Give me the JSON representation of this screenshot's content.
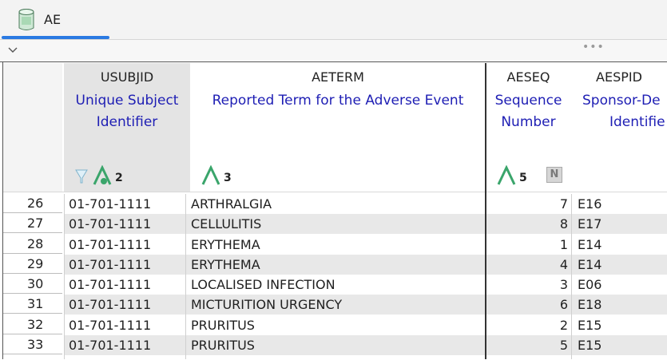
{
  "tab": {
    "label": "AE"
  },
  "columns": [
    {
      "name": "USUBJID",
      "label_line1": "Unique Subject",
      "label_line2": "Identifier",
      "sort_badge": "2"
    },
    {
      "name": "AETERM",
      "label_line1": "Reported Term for the Adverse Event",
      "label_line2": "",
      "sort_badge": "3"
    },
    {
      "name": "AESEQ",
      "label_line1": "Sequence",
      "label_line2": "Number",
      "sort_badge": "5"
    },
    {
      "name": "AESPID",
      "label_line1": "Sponsor-De",
      "label_line2": "Identifie",
      "sort_badge": ""
    }
  ],
  "icons": {
    "usubjid": [
      "filter-icon",
      "sort-ascending-icon"
    ],
    "aeterm": [
      "sort-ascending-icon"
    ],
    "aeseq": [
      "sort-ascending-icon",
      "numeric-type-icon"
    ],
    "numeric_type_glyph": "N"
  },
  "rows": [
    {
      "num": "26",
      "usubjid": "01-701-1111",
      "aeterm": "ARTHRALGIA",
      "aeseq": "7",
      "aespid": "E16"
    },
    {
      "num": "27",
      "usubjid": "01-701-1111",
      "aeterm": "CELLULITIS",
      "aeseq": "8",
      "aespid": "E17"
    },
    {
      "num": "28",
      "usubjid": "01-701-1111",
      "aeterm": "ERYTHEMA",
      "aeseq": "1",
      "aespid": "E14"
    },
    {
      "num": "29",
      "usubjid": "01-701-1111",
      "aeterm": "ERYTHEMA",
      "aeseq": "4",
      "aespid": "E14"
    },
    {
      "num": "30",
      "usubjid": "01-701-1111",
      "aeterm": "LOCALISED INFECTION",
      "aeseq": "3",
      "aespid": "E06"
    },
    {
      "num": "31",
      "usubjid": "01-701-1111",
      "aeterm": "MICTURITION URGENCY",
      "aeseq": "6",
      "aespid": "E18"
    },
    {
      "num": "32",
      "usubjid": "01-701-1111",
      "aeterm": "PRURITUS",
      "aeseq": "2",
      "aespid": "E15"
    },
    {
      "num": "33",
      "usubjid": "01-701-1111",
      "aeterm": "PRURITUS",
      "aeseq": "5",
      "aespid": "E15"
    }
  ],
  "colors": {
    "accent": "#2a7ae2",
    "label_blue": "#1e1eb4",
    "sort_green": "#3aa56b"
  }
}
